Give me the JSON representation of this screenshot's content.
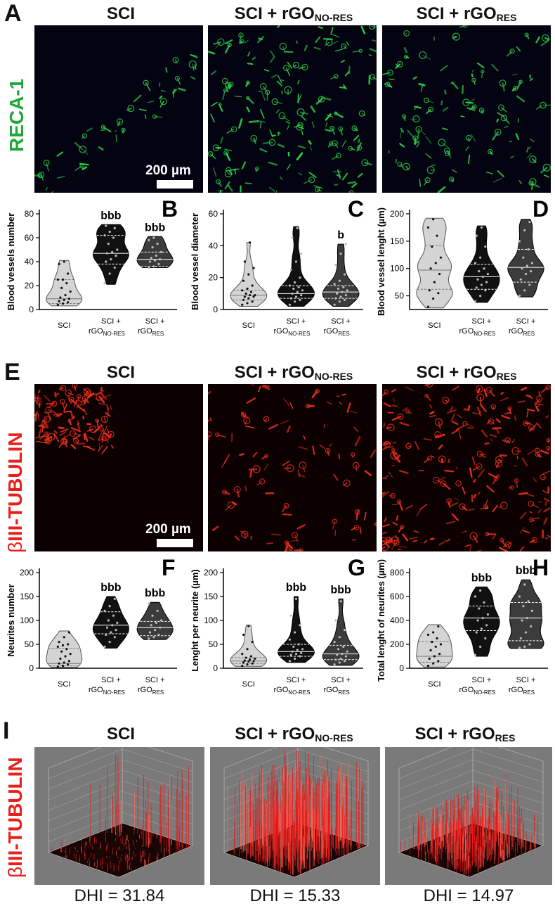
{
  "panels": {
    "A": "A",
    "B": "B",
    "C": "C",
    "D": "D",
    "E": "E",
    "F": "F",
    "G": "G",
    "H": "H",
    "I": "I"
  },
  "columns": {
    "sci": "SCI",
    "nores_main": "SCI + rGO",
    "nores_sub": "NO-RES",
    "res_main": "SCI + rGO",
    "res_sub": "RES"
  },
  "stain_labels": {
    "reca": "RECA-1",
    "tubulin_prefix": "β",
    "tubulin_rest": "III-TUBULIN"
  },
  "scale_bar": "200 µm",
  "colors": {
    "green": "#1fa83a",
    "red": "#e8201c",
    "violin_light": "#d4d4d4",
    "violin_black": "#111111",
    "violin_dark": "#3c3c3c"
  },
  "x_tick_labels": {
    "sci": "SCI",
    "line1": "SCI +",
    "nores": "rGO",
    "nores_sub": "NO-RES",
    "res": "rGO",
    "res_sub": "RES"
  },
  "chart_data": [
    {
      "id": "B",
      "type": "violin",
      "categories": [
        "SCI",
        "SCI + rGONO-RES",
        "SCI + rGORES"
      ],
      "ylabel": "Blood vessels number",
      "ylim": [
        0,
        80
      ],
      "yticks": [
        0,
        20,
        40,
        60,
        80
      ],
      "series": [
        {
          "values": [
            4,
            5,
            6,
            7,
            8,
            9,
            10,
            12,
            15,
            18,
            22,
            25,
            25,
            30,
            38,
            40
          ],
          "median": 9,
          "q1": 5,
          "q3": 25,
          "min": 3,
          "max": 41
        },
        {
          "values": [
            22,
            30,
            35,
            40,
            42,
            45,
            47,
            48,
            50,
            55,
            60,
            62,
            65,
            68,
            70
          ],
          "median": 47,
          "q1": 38,
          "q3": 62,
          "min": 21,
          "max": 71
        },
        {
          "values": [
            35,
            36,
            38,
            40,
            41,
            42,
            43,
            45,
            48,
            52,
            55,
            58,
            60
          ],
          "median": 42,
          "q1": 36,
          "q3": 48,
          "min": 35,
          "max": 61
        }
      ],
      "annotations": [
        "",
        "bbb",
        "bbb"
      ]
    },
    {
      "id": "C",
      "type": "violin",
      "categories": [
        "SCI",
        "SCI + rGONO-RES",
        "SCI + rGORES"
      ],
      "ylabel": "Blood vessel diameter",
      "ylim": [
        0,
        60
      ],
      "yticks": [
        0,
        20,
        40,
        60
      ],
      "series": [
        {
          "values": [
            3,
            4,
            5,
            6,
            7,
            8,
            8,
            9,
            9,
            10,
            11,
            12,
            13,
            15,
            18,
            22,
            26,
            30,
            42
          ],
          "median": 9,
          "q1": 6,
          "q3": 12,
          "min": 2,
          "max": 42
        },
        {
          "values": [
            3,
            5,
            6,
            7,
            8,
            9,
            10,
            11,
            12,
            13,
            14,
            15,
            17,
            20,
            25,
            30,
            35,
            45,
            51
          ],
          "median": 10,
          "q1": 7,
          "q3": 15,
          "min": 2,
          "max": 52
        },
        {
          "values": [
            3,
            5,
            6,
            7,
            8,
            9,
            10,
            11,
            12,
            13,
            14,
            16,
            18,
            22,
            28,
            35,
            41
          ],
          "median": 11,
          "q1": 7,
          "q3": 15,
          "min": 2,
          "max": 41
        }
      ],
      "annotations": [
        "",
        "",
        "b"
      ]
    },
    {
      "id": "D",
      "type": "violin",
      "categories": [
        "SCI",
        "SCI + rGONO-RES",
        "SCI + rGORES"
      ],
      "ylabel": "Blood vessel lenght (µm)",
      "ylim": [
        25,
        200
      ],
      "yticks": [
        50,
        100,
        150,
        200
      ],
      "series": [
        {
          "values": [
            30,
            45,
            55,
            60,
            75,
            90,
            100,
            110,
            120,
            140,
            160,
            175,
            190
          ],
          "median": 97,
          "q1": 62,
          "q3": 142,
          "min": 28,
          "max": 192
        },
        {
          "values": [
            40,
            50,
            60,
            65,
            70,
            75,
            80,
            85,
            90,
            95,
            100,
            110,
            120,
            140,
            160,
            175
          ],
          "median": 85,
          "q1": 62,
          "q3": 108,
          "min": 38,
          "max": 178
        },
        {
          "values": [
            50,
            60,
            70,
            80,
            90,
            95,
            100,
            105,
            110,
            120,
            135,
            150,
            170,
            185
          ],
          "median": 102,
          "q1": 75,
          "q3": 135,
          "min": 48,
          "max": 190
        }
      ],
      "annotations": [
        "",
        "",
        ""
      ]
    },
    {
      "id": "F",
      "type": "violin",
      "categories": [
        "SCI",
        "SCI + rGONO-RES",
        "SCI + rGORES"
      ],
      "ylabel": "Neurites number",
      "ylim": [
        0,
        200
      ],
      "yticks": [
        0,
        50,
        100,
        150,
        200
      ],
      "series": [
        {
          "values": [
            3,
            5,
            8,
            10,
            12,
            15,
            20,
            25,
            30,
            35,
            40,
            45,
            48,
            50,
            55,
            65,
            75
          ],
          "median": 10,
          "q1": 5,
          "q3": 42,
          "min": 2,
          "max": 78
        },
        {
          "values": [
            45,
            55,
            65,
            70,
            75,
            80,
            85,
            90,
            95,
            100,
            110,
            120,
            130,
            145
          ],
          "median": 90,
          "q1": 72,
          "q3": 118,
          "min": 42,
          "max": 150
        },
        {
          "values": [
            62,
            65,
            70,
            75,
            80,
            85,
            90,
            95,
            100,
            110,
            120,
            135
          ],
          "median": 85,
          "q1": 68,
          "q3": 98,
          "min": 60,
          "max": 138
        }
      ],
      "annotations": [
        "",
        "bbb",
        "bbb"
      ]
    },
    {
      "id": "G",
      "type": "violin",
      "categories": [
        "SCI",
        "SCI + rGONO-RES",
        "SCI + rGORES"
      ],
      "ylabel": "Lenght per neurite (µm)",
      "ylim": [
        0,
        200
      ],
      "yticks": [
        0,
        50,
        100,
        150,
        200
      ],
      "series": [
        {
          "values": [
            5,
            8,
            10,
            12,
            14,
            15,
            16,
            18,
            20,
            22,
            25,
            30,
            40,
            55,
            70,
            88
          ],
          "median": 15,
          "q1": 10,
          "q3": 22,
          "min": 4,
          "max": 90
        },
        {
          "values": [
            15,
            20,
            25,
            28,
            30,
            32,
            35,
            38,
            40,
            45,
            50,
            60,
            75,
            90,
            110,
            145
          ],
          "median": 35,
          "q1": 25,
          "q3": 50,
          "min": 12,
          "max": 150
        },
        {
          "values": [
            8,
            12,
            15,
            18,
            20,
            25,
            28,
            30,
            35,
            40,
            45,
            55,
            65,
            80,
            100,
            140
          ],
          "median": 30,
          "q1": 18,
          "q3": 48,
          "min": 6,
          "max": 145
        }
      ],
      "annotations": [
        "",
        "bbb",
        "bbb"
      ]
    },
    {
      "id": "H",
      "type": "violin",
      "categories": [
        "SCI",
        "SCI + rGONO-RES",
        "SCI + rGORES"
      ],
      "ylabel": "Total lenght of neurites (µm)",
      "ylim": [
        0,
        800
      ],
      "yticks": [
        0,
        200,
        400,
        600,
        800
      ],
      "series": [
        {
          "values": [
            20,
            40,
            60,
            80,
            100,
            120,
            150,
            180,
            200,
            220,
            250,
            280,
            300,
            350
          ],
          "median": 100,
          "q1": 50,
          "q3": 225,
          "min": 10,
          "max": 365
        },
        {
          "values": [
            110,
            180,
            250,
            300,
            330,
            360,
            400,
            420,
            450,
            500,
            550,
            600,
            650
          ],
          "median": 420,
          "q1": 315,
          "q3": 520,
          "min": 100,
          "max": 680
        },
        {
          "values": [
            170,
            180,
            200,
            250,
            300,
            350,
            400,
            420,
            480,
            520,
            560,
            600,
            700
          ],
          "median": 420,
          "q1": 230,
          "q3": 550,
          "min": 165,
          "max": 740
        }
      ],
      "annotations": [
        "",
        "bbb",
        "bbb"
      ]
    }
  ],
  "dhi": [
    "DHI = 31.84",
    "DHI = 15.33",
    "DHI = 14.97"
  ]
}
